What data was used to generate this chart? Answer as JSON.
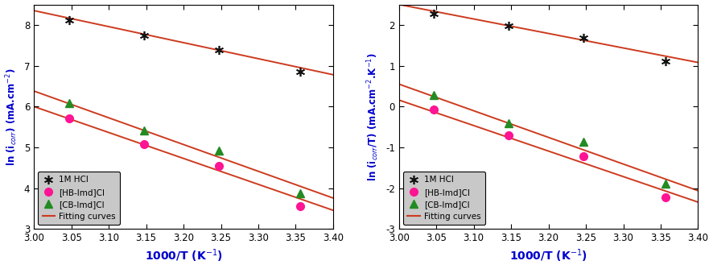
{
  "left": {
    "ylabel": "ln (i$_{corr}$) (mA.cm$^{-2}$)",
    "xlabel": "1000/T (K$^{-1}$)",
    "xlim": [
      3.0,
      3.4
    ],
    "ylim": [
      3.0,
      8.5
    ],
    "yticks": [
      3,
      4,
      5,
      6,
      7,
      8
    ],
    "xticks": [
      3.0,
      3.05,
      3.1,
      3.15,
      3.2,
      3.25,
      3.3,
      3.35,
      3.4
    ],
    "series": {
      "HCl": {
        "x": [
          3.047,
          3.147,
          3.247,
          3.356
        ],
        "y": [
          8.12,
          7.75,
          7.38,
          6.85
        ],
        "fit_x": [
          3.0,
          3.4
        ],
        "fit_y": [
          8.35,
          6.78
        ]
      },
      "HB": {
        "x": [
          3.047,
          3.147,
          3.247,
          3.356
        ],
        "y": [
          5.72,
          5.08,
          4.55,
          3.56
        ],
        "fit_x": [
          3.0,
          3.4
        ],
        "fit_y": [
          6.0,
          3.46
        ]
      },
      "CB": {
        "x": [
          3.047,
          3.147,
          3.247,
          3.356
        ],
        "y": [
          6.09,
          5.42,
          4.92,
          3.88
        ],
        "fit_x": [
          3.0,
          3.4
        ],
        "fit_y": [
          6.38,
          3.76
        ]
      }
    }
  },
  "right": {
    "ylabel": "ln (i$_{corr}$/T) (mA.cm$^{-2}$.K$^{-1}$)",
    "xlabel": "1000/T (K$^{-1}$)",
    "xlim": [
      3.0,
      3.4
    ],
    "ylim": [
      -3.0,
      2.5
    ],
    "yticks": [
      -3,
      -2,
      -1,
      0,
      1,
      2
    ],
    "xticks": [
      3.0,
      3.05,
      3.1,
      3.15,
      3.2,
      3.25,
      3.3,
      3.35,
      3.4
    ],
    "series": {
      "HCl": {
        "x": [
          3.047,
          3.147,
          3.247,
          3.356
        ],
        "y": [
          2.28,
          1.97,
          1.69,
          1.12
        ],
        "fit_x": [
          3.0,
          3.4
        ],
        "fit_y": [
          2.5,
          1.08
        ]
      },
      "HB": {
        "x": [
          3.047,
          3.147,
          3.247,
          3.356
        ],
        "y": [
          -0.07,
          -0.7,
          -1.22,
          -2.22
        ],
        "fit_x": [
          3.0,
          3.4
        ],
        "fit_y": [
          0.16,
          -2.34
        ]
      },
      "CB": {
        "x": [
          3.047,
          3.147,
          3.247,
          3.356
        ],
        "y": [
          0.29,
          -0.4,
          -0.87,
          -1.89
        ],
        "fit_x": [
          3.0,
          3.4
        ],
        "fit_y": [
          0.55,
          -2.06
        ]
      }
    }
  },
  "colors": {
    "HCl": "#111111",
    "HB": "#ff1493",
    "CB": "#228B22",
    "fit": "#cd3b1f"
  },
  "legend_labels": [
    "1M HCl",
    "[HB-Imd]Cl",
    "[CB-Imd]Cl",
    "Fitting curves"
  ],
  "label_color": "#0000cc",
  "bg_color": "#ffffff",
  "legend_bg": "#c8c8c8"
}
